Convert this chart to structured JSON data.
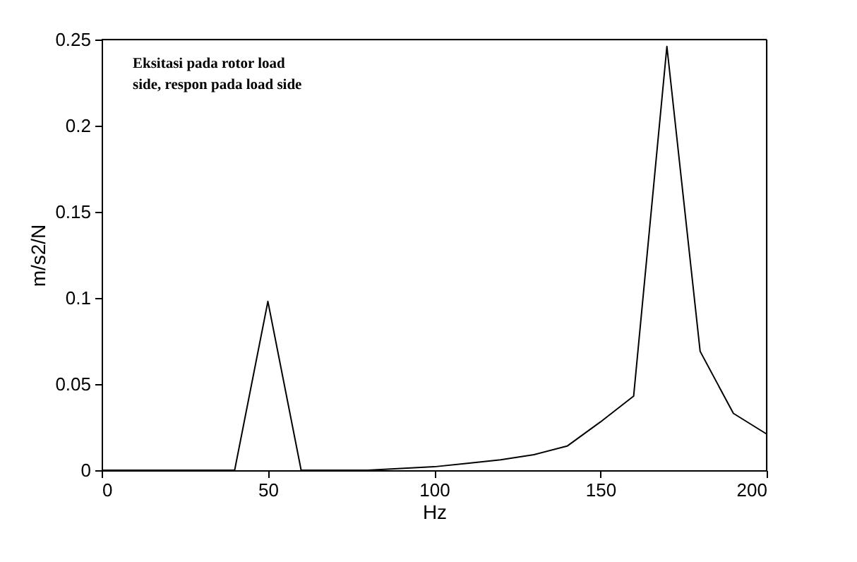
{
  "chart_data": {
    "type": "line",
    "xlabel": "Hz",
    "ylabel": "m/s2/N",
    "x": [
      0,
      10,
      20,
      30,
      40,
      50,
      60,
      70,
      80,
      90,
      100,
      110,
      120,
      130,
      140,
      150,
      160,
      170,
      180,
      190,
      200
    ],
    "series": [
      {
        "color": "#000000",
        "values": [
          0,
          0,
          0,
          0,
          0,
          0.098,
          0,
          0,
          0,
          0.001,
          0.002,
          0.004,
          0.006,
          0.009,
          0.014,
          0.028,
          0.043,
          0.246,
          0.069,
          0.033,
          0.021
        ]
      }
    ],
    "xlim": [
      0,
      200
    ],
    "xticks": [
      0,
      50,
      100,
      150,
      200
    ],
    "ylim": [
      0,
      0.25
    ],
    "yticks": [
      0,
      0.05,
      0.1,
      0.15,
      0.2,
      0.25
    ],
    "annotations": [
      "Eksitasi pada rotor load side, respon pada load side"
    ],
    "grid": false,
    "marker": "none",
    "line_style": "solid"
  }
}
